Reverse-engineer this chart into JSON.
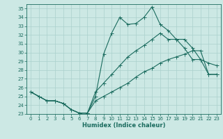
{
  "xlabel": "Humidex (Indice chaleur)",
  "xlim": [
    -0.5,
    23.5
  ],
  "ylim": [
    23,
    35.5
  ],
  "yticks": [
    23,
    24,
    25,
    26,
    27,
    28,
    29,
    30,
    31,
    32,
    33,
    34,
    35
  ],
  "xticks": [
    0,
    1,
    2,
    3,
    4,
    5,
    6,
    7,
    8,
    9,
    10,
    11,
    12,
    13,
    14,
    15,
    16,
    17,
    18,
    19,
    20,
    21,
    22,
    23
  ],
  "background_color": "#cce8e4",
  "grid_color": "#aad0cc",
  "line_color": "#1a6b5e",
  "line1_y": [
    25.5,
    25.0,
    24.5,
    24.5,
    24.2,
    23.5,
    23.1,
    23.1,
    25.0,
    29.8,
    32.2,
    34.0,
    33.2,
    33.3,
    34.0,
    35.2,
    33.2,
    32.5,
    31.5,
    30.5,
    29.2,
    29.2,
    27.5,
    27.5
  ],
  "line2_y": [
    25.5,
    25.0,
    24.5,
    24.5,
    24.2,
    23.5,
    23.1,
    23.1,
    25.5,
    26.5,
    27.5,
    28.5,
    29.5,
    30.2,
    30.8,
    31.5,
    32.2,
    31.5,
    31.5,
    31.5,
    30.5,
    29.2,
    28.8,
    28.5
  ],
  "line3_y": [
    25.5,
    25.0,
    24.5,
    24.5,
    24.2,
    23.5,
    23.1,
    23.1,
    24.5,
    25.0,
    25.5,
    26.0,
    26.5,
    27.2,
    27.8,
    28.2,
    28.8,
    29.2,
    29.5,
    29.8,
    30.2,
    30.2,
    27.5,
    27.5
  ]
}
